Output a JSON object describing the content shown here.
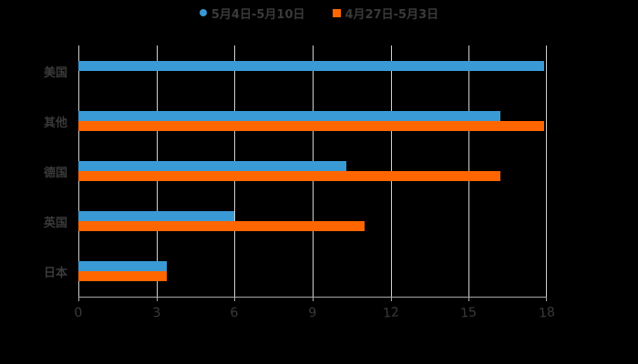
{
  "chart_data": {
    "type": "bar",
    "orientation": "horizontal",
    "title": "",
    "xlabel": "",
    "ylabel": "",
    "categories": [
      "美国",
      "其他",
      "德国",
      "英国",
      "日本"
    ],
    "series": [
      {
        "name": "5月4日-5月10日",
        "color": "#3a9ad6",
        "marker": "circle",
        "values": [
          17.9,
          16.2,
          10.3,
          6.0,
          3.4
        ]
      },
      {
        "name": "4月27日-5月3日",
        "color": "#ff6600",
        "marker": "square",
        "values": [
          null,
          17.9,
          16.2,
          11.0,
          3.4
        ]
      }
    ],
    "xlim": [
      0,
      18
    ],
    "xticks": [
      "0",
      "3",
      "6",
      "9",
      "12",
      "15",
      "18"
    ],
    "grid": true,
    "legend_position": "top"
  },
  "legend": {
    "items": [
      {
        "label": "5月4日-5月10日",
        "color": "#3a9ad6"
      },
      {
        "label": "4月27日-5月3日",
        "color": "#ff6600"
      }
    ]
  }
}
